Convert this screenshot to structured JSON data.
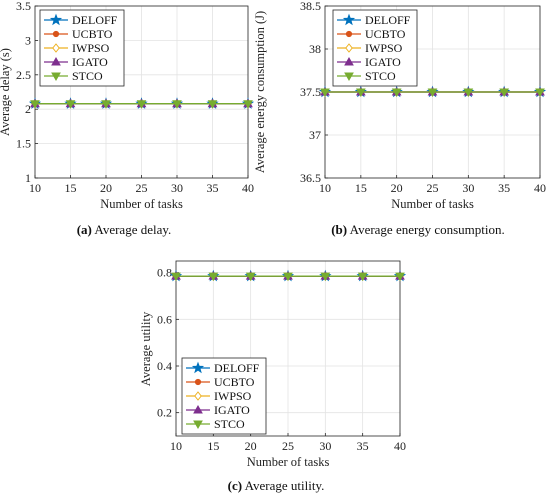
{
  "chart_data": [
    {
      "type": "line",
      "caption_label": "(a)",
      "caption_text": "Average delay.",
      "xlabel": "Number of tasks",
      "ylabel": "Average delay (s)",
      "x": [
        10,
        15,
        20,
        25,
        30,
        35,
        40
      ],
      "xlim": [
        10,
        40
      ],
      "ylim": [
        1,
        3.5
      ],
      "xticks": [
        "10",
        "15",
        "20",
        "25",
        "30",
        "35",
        "40"
      ],
      "yticks": [
        "1",
        "1.5",
        "2",
        "2.5",
        "3",
        "3.5"
      ],
      "grid": true,
      "legend_position": "top-left",
      "series": [
        {
          "name": "DELOFF",
          "color": "#0072BD",
          "marker": "star",
          "values": [
            2.08,
            2.08,
            2.08,
            2.08,
            2.08,
            2.08,
            2.08
          ]
        },
        {
          "name": "UCBTO",
          "color": "#D95319",
          "marker": "dot",
          "values": [
            2.08,
            2.08,
            2.08,
            2.08,
            2.08,
            2.08,
            2.08
          ]
        },
        {
          "name": "IWPSO",
          "color": "#EDB120",
          "marker": "diamond",
          "values": [
            2.08,
            2.08,
            2.08,
            2.08,
            2.08,
            2.08,
            2.08
          ]
        },
        {
          "name": "IGATO",
          "color": "#7E2F8E",
          "marker": "triangle-up",
          "values": [
            2.08,
            2.08,
            2.08,
            2.08,
            2.08,
            2.08,
            2.08
          ]
        },
        {
          "name": "STCO",
          "color": "#77AC30",
          "marker": "triangle-down",
          "values": [
            2.08,
            2.08,
            2.08,
            2.08,
            2.08,
            2.08,
            2.08
          ]
        }
      ]
    },
    {
      "type": "line",
      "caption_label": "(b)",
      "caption_text": "Average energy consumption.",
      "xlabel": "Number of tasks",
      "ylabel": "Average energy consumption (J)",
      "x": [
        10,
        15,
        20,
        25,
        30,
        35,
        40
      ],
      "xlim": [
        10,
        40
      ],
      "ylim": [
        36.5,
        38.5
      ],
      "xticks": [
        "10",
        "15",
        "20",
        "25",
        "30",
        "35",
        "40"
      ],
      "yticks": [
        "36.5",
        "37",
        "37.5",
        "38",
        "38.5"
      ],
      "grid": true,
      "legend_position": "top-left",
      "series": [
        {
          "name": "DELOFF",
          "color": "#0072BD",
          "marker": "star",
          "values": [
            37.5,
            37.5,
            37.5,
            37.5,
            37.5,
            37.5,
            37.5
          ]
        },
        {
          "name": "UCBTO",
          "color": "#D95319",
          "marker": "dot",
          "values": [
            37.5,
            37.5,
            37.5,
            37.5,
            37.5,
            37.5,
            37.5
          ]
        },
        {
          "name": "IWPSO",
          "color": "#EDB120",
          "marker": "diamond",
          "values": [
            37.5,
            37.5,
            37.5,
            37.5,
            37.5,
            37.5,
            37.5
          ]
        },
        {
          "name": "IGATO",
          "color": "#7E2F8E",
          "marker": "triangle-up",
          "values": [
            37.5,
            37.5,
            37.5,
            37.5,
            37.5,
            37.5,
            37.5
          ]
        },
        {
          "name": "STCO",
          "color": "#77AC30",
          "marker": "triangle-down",
          "values": [
            37.5,
            37.5,
            37.5,
            37.5,
            37.5,
            37.5,
            37.5
          ]
        }
      ]
    },
    {
      "type": "line",
      "caption_label": "(c)",
      "caption_text": "Average utility.",
      "xlabel": "Number of tasks",
      "ylabel": "Average utility",
      "x": [
        10,
        15,
        20,
        25,
        30,
        35,
        40
      ],
      "xlim": [
        10,
        40
      ],
      "ylim": [
        0.1,
        0.85
      ],
      "xticks": [
        "10",
        "15",
        "20",
        "25",
        "30",
        "35",
        "40"
      ],
      "yticks": [
        "0.2",
        "0.4",
        "0.6",
        "0.8"
      ],
      "grid": true,
      "legend_position": "bottom-left",
      "series": [
        {
          "name": "DELOFF",
          "color": "#0072BD",
          "marker": "star",
          "values": [
            0.785,
            0.785,
            0.785,
            0.785,
            0.785,
            0.785,
            0.785
          ]
        },
        {
          "name": "UCBTO",
          "color": "#D95319",
          "marker": "dot",
          "values": [
            0.785,
            0.785,
            0.785,
            0.785,
            0.785,
            0.785,
            0.785
          ]
        },
        {
          "name": "IWPSO",
          "color": "#EDB120",
          "marker": "diamond",
          "values": [
            0.785,
            0.785,
            0.785,
            0.785,
            0.785,
            0.785,
            0.785
          ]
        },
        {
          "name": "IGATO",
          "color": "#7E2F8E",
          "marker": "triangle-up",
          "values": [
            0.785,
            0.785,
            0.785,
            0.785,
            0.785,
            0.785,
            0.785
          ]
        },
        {
          "name": "STCO",
          "color": "#77AC30",
          "marker": "triangle-down",
          "values": [
            0.785,
            0.785,
            0.785,
            0.785,
            0.785,
            0.785,
            0.785
          ]
        }
      ]
    }
  ]
}
